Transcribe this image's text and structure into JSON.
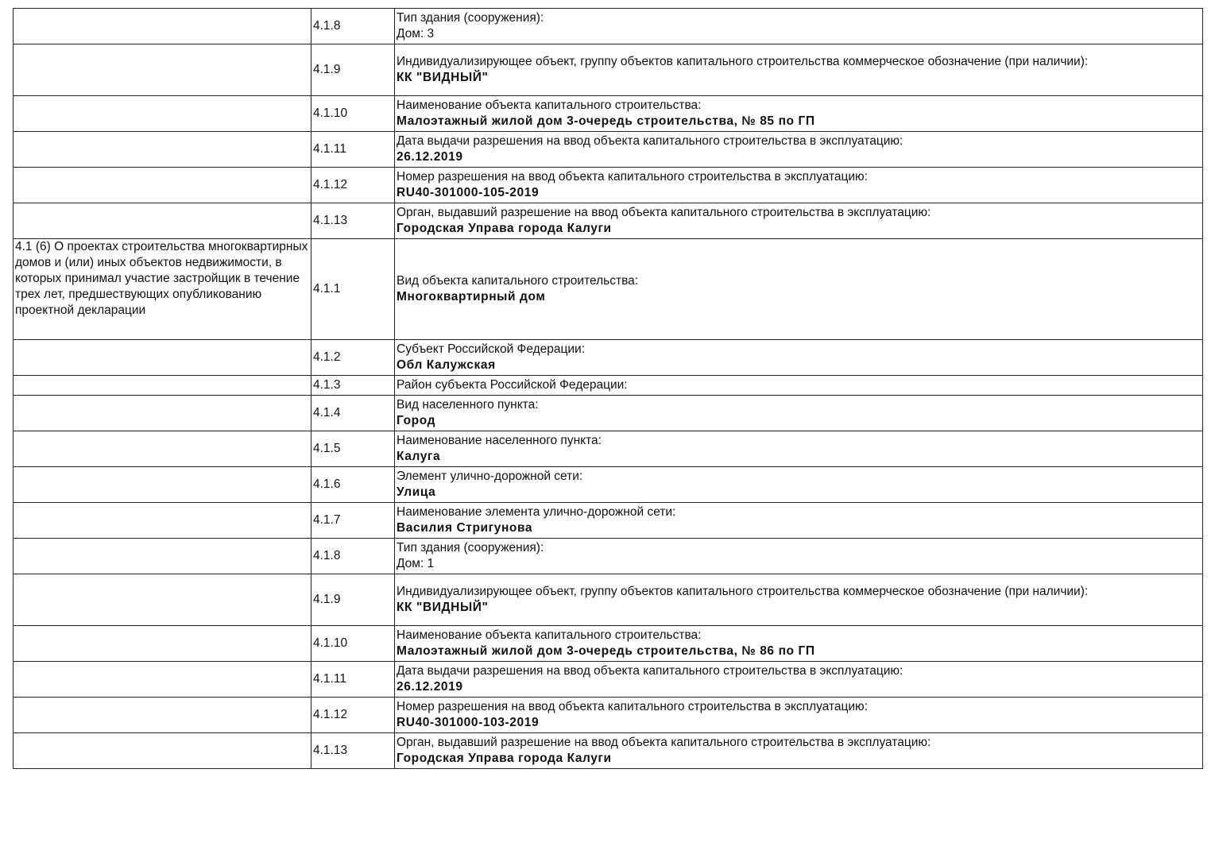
{
  "rows": [
    {
      "section": "",
      "num": "4.1.8",
      "label": "Тип здания (сооружения):",
      "value": "Дом: 3",
      "bold": false
    },
    {
      "section": "",
      "num": "4.1.9",
      "label": "Индивидуализирующее объект, группу объектов капитального строительства коммерческое обозначение (при наличии):",
      "value": "КК \"ВИДНЫЙ\"",
      "bold": true
    },
    {
      "section": "",
      "num": "4.1.10",
      "label": "Наименование объекта капитального строительства:",
      "value": "Малоэтажный жилой дом 3-очередь строительства, № 85 по ГП",
      "bold": true
    },
    {
      "section": "",
      "num": "4.1.11",
      "label": "Дата выдачи разрешения на ввод объекта капитального строительства в эксплуатацию:",
      "value": "26.12.2019",
      "bold": true
    },
    {
      "section": "",
      "num": "4.1.12",
      "label": "Номер разрешения на ввод объекта капитального строительства в эксплуатацию:",
      "value": "RU40-301000-105-2019",
      "bold": true
    },
    {
      "section": "",
      "num": "4.1.13",
      "label": "Орган, выдавший разрешение на ввод объекта капитального строительства в эксплуатацию:",
      "value": "Городская Управа города Калуги",
      "bold": true
    },
    {
      "section": "4.1 (6) О проектах строительства многоквартирных домов и (или) иных объектов недвижимости, в которых принимал участие застройщик в течение трех лет, предшествующих опубликованию проектной декларации",
      "num": "4.1.1",
      "label": "Вид объекта капитального строительства:",
      "value": "Многоквартирный дом",
      "bold": true
    },
    {
      "section": "",
      "num": "4.1.2",
      "label": "Субъект Российской Федерации:",
      "value": "Обл Калужская",
      "bold": true
    },
    {
      "section": "",
      "num": "4.1.3",
      "label": "Район субъекта Российской Федерации:",
      "value": "",
      "bold": true
    },
    {
      "section": "",
      "num": "4.1.4",
      "label": "Вид населенного пункта:",
      "value": "Город",
      "bold": true
    },
    {
      "section": "",
      "num": "4.1.5",
      "label": "Наименование населенного пункта:",
      "value": "Калуга",
      "bold": true
    },
    {
      "section": "",
      "num": "4.1.6",
      "label": "Элемент улично-дорожной сети:",
      "value": "Улица",
      "bold": true
    },
    {
      "section": "",
      "num": "4.1.7",
      "label": "Наименование элемента улично-дорожной сети:",
      "value": "Василия Стригунова",
      "bold": true
    },
    {
      "section": "",
      "num": "4.1.8",
      "label": "Тип здания (сооружения):",
      "value": "Дом: 1",
      "bold": false
    },
    {
      "section": "",
      "num": "4.1.9",
      "label": "Индивидуализирующее объект, группу объектов капитального строительства коммерческое обозначение (при наличии):",
      "value": "КК \"ВИДНЫЙ\"",
      "bold": true
    },
    {
      "section": "",
      "num": "4.1.10",
      "label": "Наименование объекта капитального строительства:",
      "value": "Малоэтажный жилой дом 3-очередь строительства, № 86 по ГП",
      "bold": true
    },
    {
      "section": "",
      "num": "4.1.11",
      "label": "Дата выдачи разрешения на ввод объекта капитального строительства в эксплуатацию:",
      "value": "26.12.2019",
      "bold": true
    },
    {
      "section": "",
      "num": "4.1.12",
      "label": "Номер разрешения на ввод объекта капитального строительства в эксплуатацию:",
      "value": "RU40-301000-103-2019",
      "bold": true
    },
    {
      "section": "",
      "num": "4.1.13",
      "label": "Орган, выдавший разрешение на ввод объекта капитального строительства в эксплуатацию:",
      "value": "Городская Управа города Калуги",
      "bold": true
    }
  ]
}
